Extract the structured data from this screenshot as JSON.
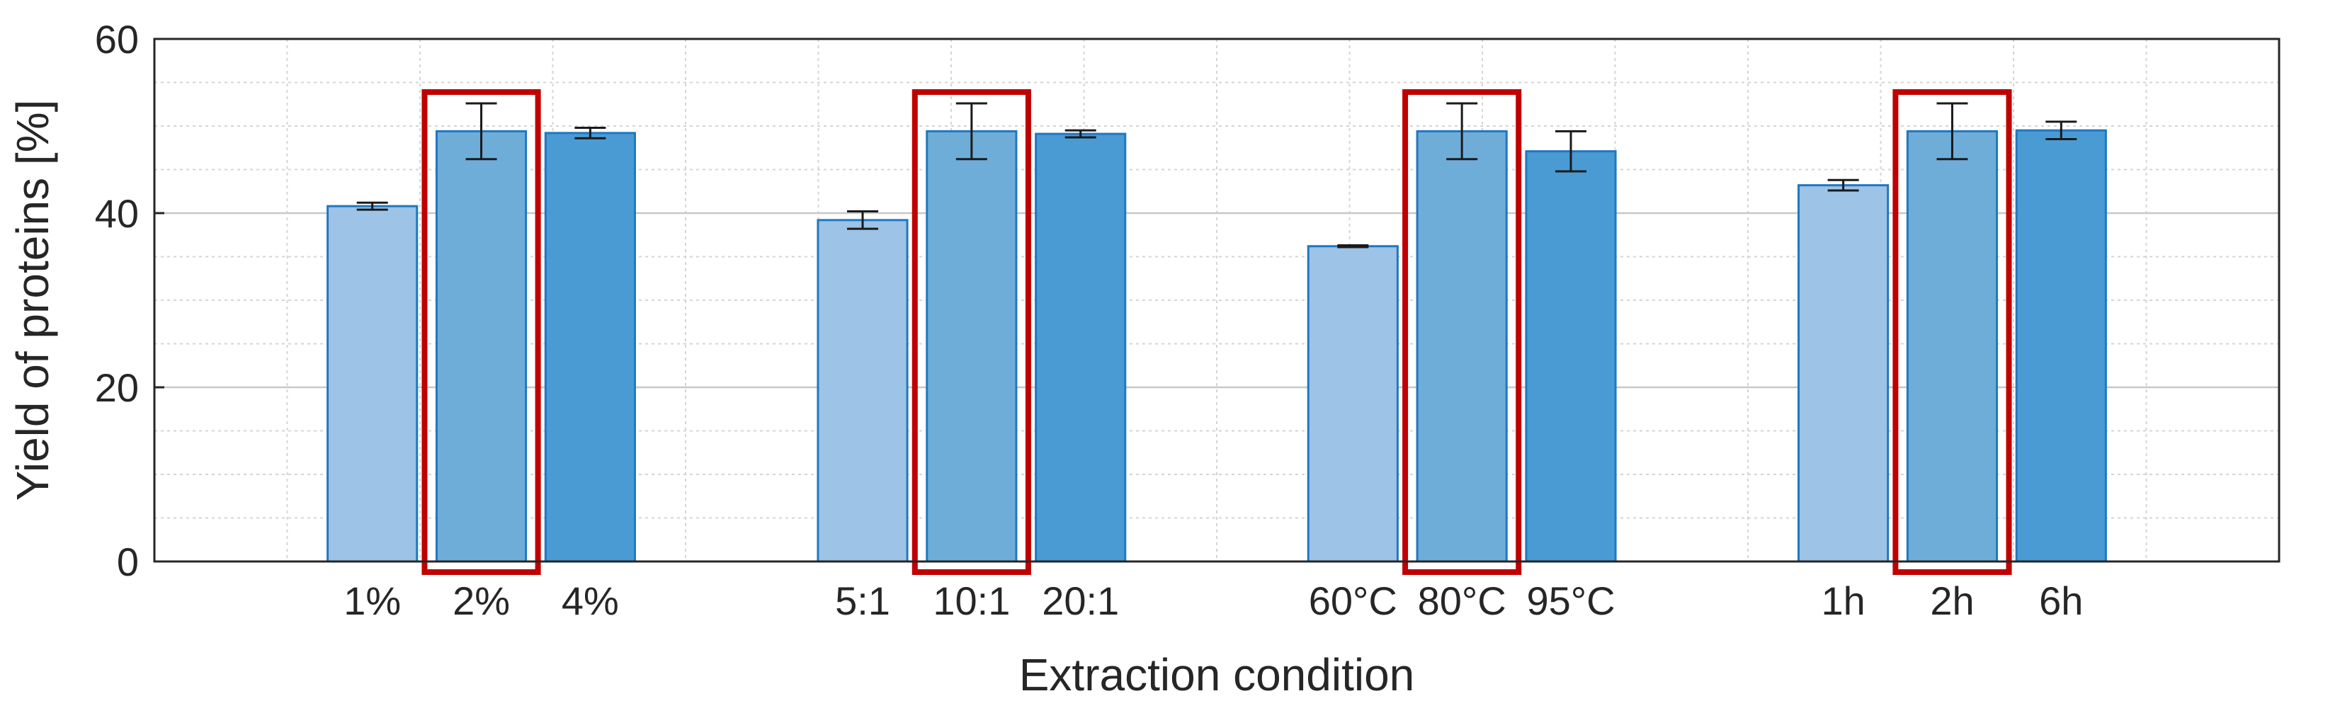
{
  "chart_data": {
    "type": "bar",
    "xlabel": "Extraction condition",
    "ylabel": "Yield of proteins [%]",
    "ylim": [
      0,
      60
    ],
    "yticks": [
      0,
      20,
      40,
      60
    ],
    "grid": true,
    "minor_grid": true,
    "groups": [
      {
        "categories": [
          "1%",
          "2%",
          "4%"
        ],
        "values": [
          40.8,
          49.4,
          49.2
        ],
        "errors": [
          0.4,
          3.2,
          0.6
        ],
        "highlighted_index": 1
      },
      {
        "categories": [
          "5:1",
          "10:1",
          "20:1"
        ],
        "values": [
          39.2,
          49.4,
          49.1
        ],
        "errors": [
          1.0,
          3.2,
          0.4
        ],
        "highlighted_index": 1
      },
      {
        "categories": [
          "60°C",
          "80°C",
          "95°C"
        ],
        "values": [
          36.2,
          49.4,
          47.1
        ],
        "errors": [
          0.1,
          3.2,
          2.3
        ],
        "highlighted_index": 1
      },
      {
        "categories": [
          "1h",
          "2h",
          "6h"
        ],
        "values": [
          43.2,
          49.4,
          49.5
        ],
        "errors": [
          0.6,
          3.2,
          1.0
        ],
        "highlighted_index": 1
      }
    ],
    "bar_colors": [
      "#9DC3E6",
      "#6FADD9",
      "#4A9BD4"
    ],
    "bar_edge_color": "#1F78C1",
    "highlight_color": "#C00000",
    "grid_color": "#D4D4D4",
    "axis_color": "#262626"
  }
}
